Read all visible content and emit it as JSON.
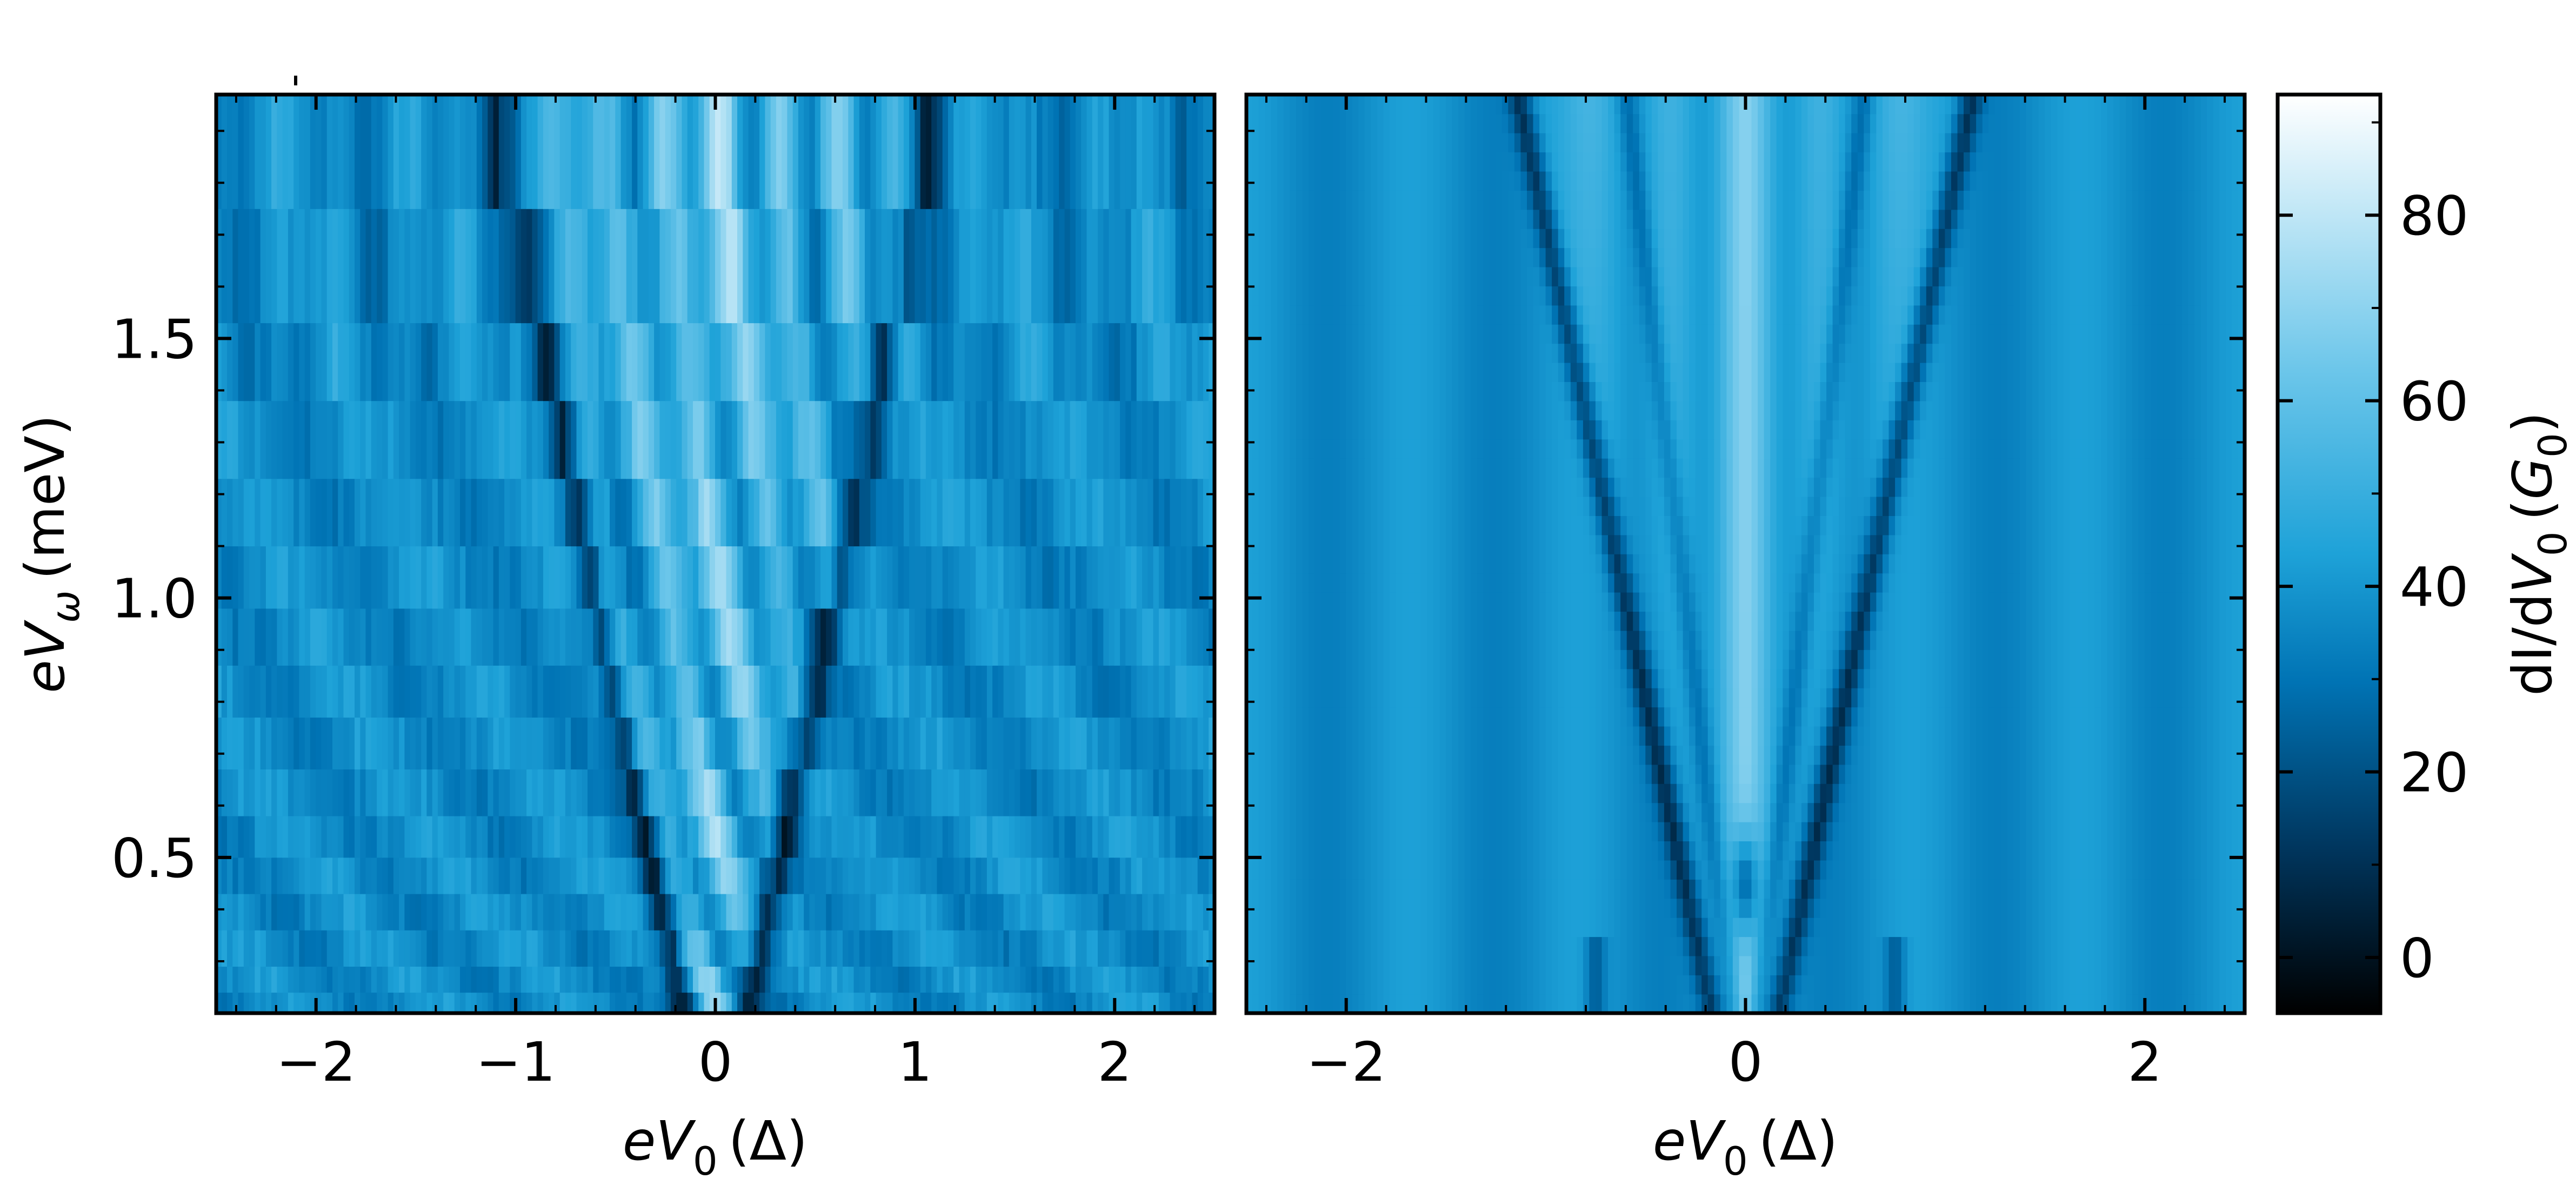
{
  "chart_data": [
    {
      "type": "heatmap",
      "panel": "left",
      "title": "",
      "xlabel": {
        "var": "eV",
        "sub": "0",
        "unit": "(Δ)"
      },
      "ylabel": {
        "var": "eV",
        "sub": "ω",
        "unit": "(meV)"
      },
      "xlim": [
        -2.5,
        2.5
      ],
      "ylim": [
        0.2,
        1.97
      ],
      "x_ticks": [
        -2,
        -1,
        0,
        1,
        2
      ],
      "x_tick_labels": [
        "−2",
        "−1",
        "0",
        "1",
        "2"
      ],
      "y_ticks": [
        0.5,
        1.0,
        1.5
      ],
      "y_tick_labels": [
        "0.5",
        "1.0",
        "1.5"
      ],
      "y_steps": [
        0.2,
        0.24,
        0.29,
        0.36,
        0.43,
        0.5,
        0.58,
        0.67,
        0.77,
        0.87,
        0.98,
        1.1,
        1.23,
        1.38,
        1.53,
        1.75,
        1.97
      ],
      "envelope": "inverted-V edge at |eV0| ≈ 0.55·eVω/Δ, dark minima on edges, bright fringes inside",
      "value_range": [
        -5,
        92
      ]
    },
    {
      "type": "heatmap",
      "panel": "right",
      "title": "",
      "xlabel": {
        "var": "eV",
        "sub": "0",
        "unit": "(Δ)"
      },
      "ylabel": "",
      "xlim": [
        -2.5,
        2.5
      ],
      "ylim": [
        0.2,
        1.97
      ],
      "x_ticks": [
        -2,
        0,
        2
      ],
      "x_tick_labels": [
        "−2",
        "0",
        "2"
      ],
      "y_ticks": [
        0.5,
        1.0,
        1.5
      ],
      "y_tick_labels": [],
      "envelope": "smooth simulated map; dark minimum at (0, ~0.45), V-shaped fringes widening with eVω",
      "value_range": [
        -5,
        92
      ]
    }
  ],
  "colorbar": {
    "label": {
      "prefix": "dI/d",
      "var": "V",
      "sub": "0",
      "unit_open": "(",
      "unit_var": "G",
      "unit_sub": "0",
      "unit_close": ")"
    },
    "range": [
      -6,
      93
    ],
    "ticks": [
      0,
      20,
      40,
      60,
      80
    ],
    "tick_labels": [
      "0",
      "20",
      "40",
      "60",
      "80"
    ],
    "colormap": [
      "#000000",
      "#00365e",
      "#0073b4",
      "#1ea2d8",
      "#6cc6ea",
      "#ffffff"
    ]
  }
}
